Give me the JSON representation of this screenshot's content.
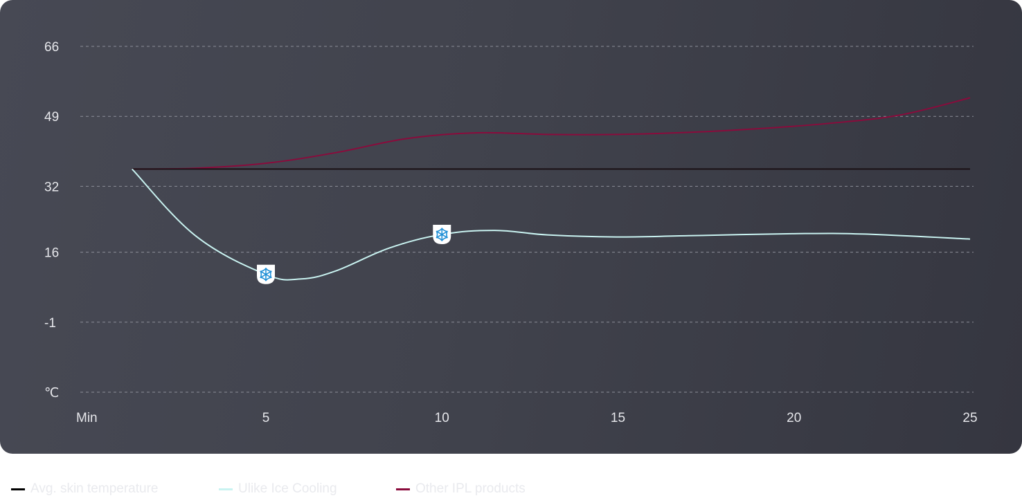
{
  "chart_data": {
    "type": "line",
    "x_label": "Min",
    "y_unit_label": "℃",
    "x_ticks": [
      "5",
      "10",
      "15",
      "20",
      "25"
    ],
    "y_ticks": [
      "66",
      "49",
      "32",
      "16",
      "-1"
    ],
    "ylim": [
      -18,
      66
    ],
    "xlim": [
      0,
      25
    ],
    "grid": true,
    "legend_position": "bottom-left",
    "series": [
      {
        "name": "Avg. skin temperature",
        "color": "#1a1014",
        "x": [
          1.2,
          25
        ],
        "y": [
          36.2,
          36.2
        ]
      },
      {
        "name": "Ulike Ice Cooling",
        "color": "#c9f3f1",
        "x": [
          1.2,
          3,
          5,
          6,
          7,
          8.5,
          10,
          11.5,
          13,
          15,
          17,
          20,
          22,
          25
        ],
        "y": [
          36.2,
          20,
          10.6,
          9.5,
          11.5,
          17,
          20.3,
          21.3,
          20.2,
          19.7,
          20.0,
          20.5,
          20.4,
          19.2
        ]
      },
      {
        "name": "Other IPL products",
        "color": "#8a0b3c",
        "x": [
          1.2,
          3,
          5,
          7,
          9,
          11,
          13,
          15,
          17,
          19,
          21,
          23,
          25
        ],
        "y": [
          36.2,
          36.4,
          37.6,
          40.2,
          43.6,
          45.0,
          44.6,
          44.6,
          45.1,
          46.0,
          47.3,
          49.3,
          53.5
        ]
      }
    ],
    "markers": [
      {
        "series": "Ulike Ice Cooling",
        "x": 5,
        "y": 10.6,
        "icon": "snowflake-icon"
      },
      {
        "series": "Ulike Ice Cooling",
        "x": 10,
        "y": 20.3,
        "icon": "snowflake-icon"
      }
    ]
  },
  "legend": [
    {
      "label": "Avg. skin temperature",
      "color": "#000000"
    },
    {
      "label": "Ulike Ice Cooling",
      "color": "#c9f3f1"
    },
    {
      "label": "Other IPL products",
      "color": "#8a0b3c"
    }
  ]
}
